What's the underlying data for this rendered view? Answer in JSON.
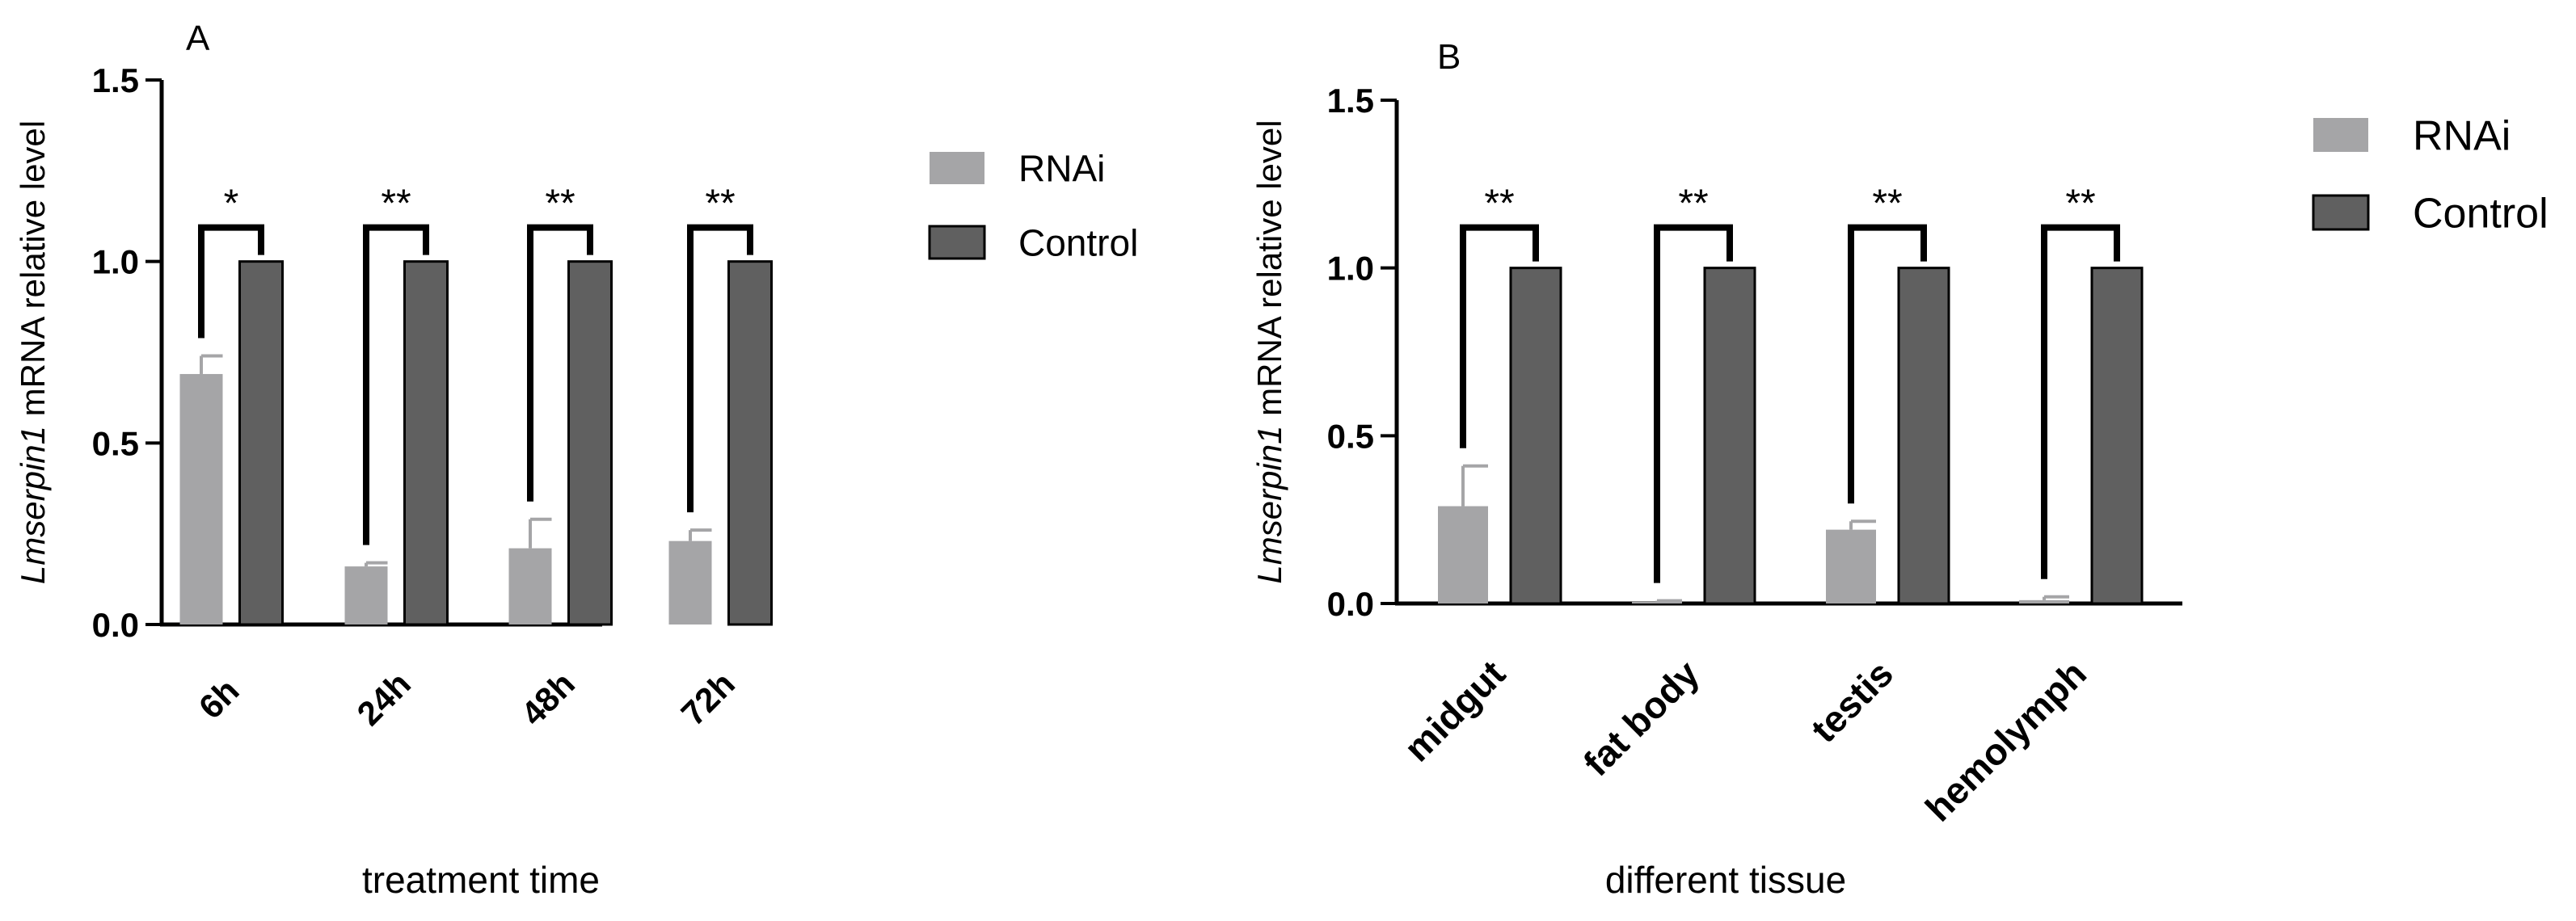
{
  "colors": {
    "rnai": "#a5a5a7",
    "control": "#606060",
    "axis": "#000000",
    "background": "#ffffff"
  },
  "chart_data": [
    {
      "panel_label": "A",
      "type": "bar",
      "categories": [
        "6h",
        "24h",
        "48h",
        "72h"
      ],
      "series": [
        {
          "name": "RNAi",
          "values": [
            0.69,
            0.16,
            0.21,
            0.23
          ],
          "errors": [
            0.05,
            0.01,
            0.08,
            0.03
          ]
        },
        {
          "name": "Control",
          "values": [
            1.0,
            1.0,
            1.0,
            1.0
          ],
          "errors": [
            0,
            0,
            0,
            0
          ]
        }
      ],
      "significance": [
        "*",
        "**",
        "**",
        "**"
      ],
      "xlabel": "treatment time",
      "ylabel_italic": "Lmserpin1",
      "ylabel_rest": " mRNA relative level",
      "ylim": [
        0,
        1.5
      ],
      "yticks": [
        "0.0",
        "0.5",
        "1.0",
        "1.5"
      ],
      "legend_position": "right",
      "grid": false
    },
    {
      "panel_label": "B",
      "type": "bar",
      "categories": [
        "midgut",
        "fat body",
        "testis",
        "hemolymph"
      ],
      "series": [
        {
          "name": "RNAi",
          "values": [
            0.29,
            0.005,
            0.22,
            0.01
          ],
          "errors": [
            0.12,
            0.003,
            0.025,
            0.01
          ]
        },
        {
          "name": "Control",
          "values": [
            1.0,
            1.0,
            1.0,
            1.0
          ],
          "errors": [
            0,
            0,
            0,
            0
          ]
        }
      ],
      "significance": [
        "**",
        "**",
        "**",
        "**"
      ],
      "xlabel": "different tissue",
      "ylabel_italic": "Lmserpin1",
      "ylabel_rest": " mRNA relative level",
      "ylim": [
        0,
        1.5
      ],
      "yticks": [
        "0.0",
        "0.5",
        "1.0",
        "1.5"
      ],
      "legend_position": "top-right",
      "grid": false
    }
  ]
}
